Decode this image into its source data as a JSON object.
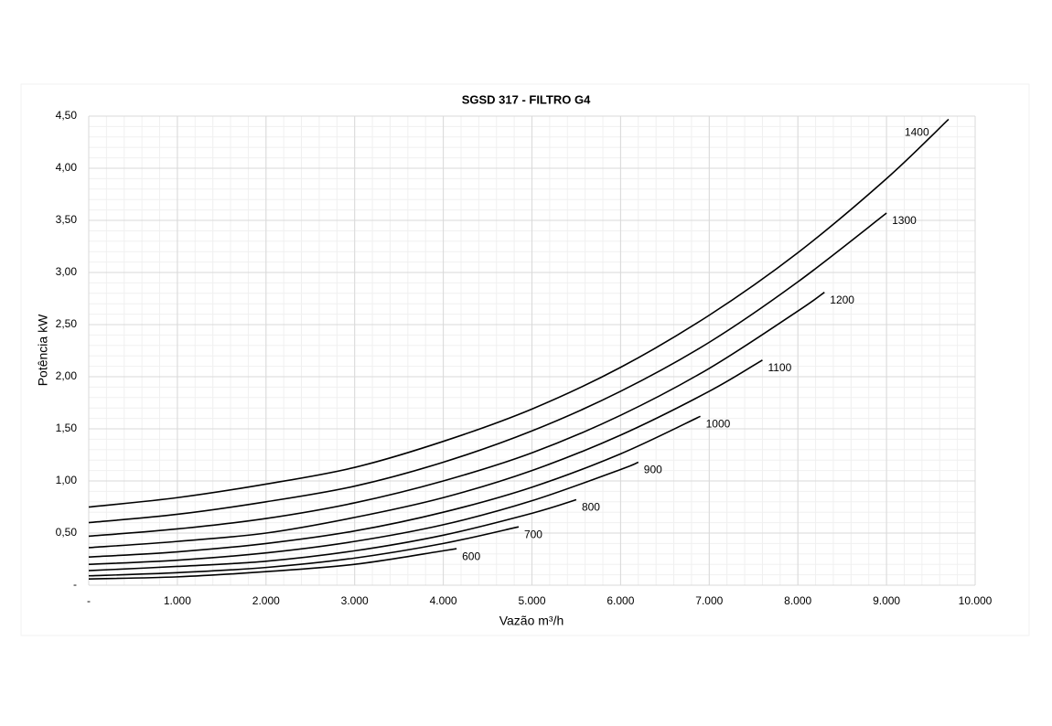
{
  "chart_data": {
    "type": "line",
    "title": "SGSD 317 -  FILTRO G4",
    "x_label": "Vazão m³/h",
    "y_label": "Potência kW",
    "xlim": [
      0,
      10000
    ],
    "ylim": [
      0,
      4.5
    ],
    "xticks": [
      {
        "value": 0,
        "label": "-"
      },
      {
        "value": 1000,
        "label": "1.000"
      },
      {
        "value": 2000,
        "label": "2.000"
      },
      {
        "value": 3000,
        "label": "3.000"
      },
      {
        "value": 4000,
        "label": "4.000"
      },
      {
        "value": 5000,
        "label": "5.000"
      },
      {
        "value": 6000,
        "label": "6.000"
      },
      {
        "value": 7000,
        "label": "7.000"
      },
      {
        "value": 8000,
        "label": "8.000"
      },
      {
        "value": 9000,
        "label": "9.000"
      },
      {
        "value": 10000,
        "label": "10.000"
      }
    ],
    "yticks": [
      {
        "value": 0,
        "label": "-"
      },
      {
        "value": 0.5,
        "label": "0,50"
      },
      {
        "value": 1,
        "label": "1,00"
      },
      {
        "value": 1.5,
        "label": "1,50"
      },
      {
        "value": 2,
        "label": "2,00"
      },
      {
        "value": 2.5,
        "label": "2,50"
      },
      {
        "value": 3,
        "label": "3,00"
      },
      {
        "value": 3.5,
        "label": "3,50"
      },
      {
        "value": 4,
        "label": "4,00"
      },
      {
        "value": 4.5,
        "label": "4,50"
      }
    ],
    "grid": true,
    "series": [
      {
        "name": "1400",
        "color": "#000000",
        "x": [
          0,
          1000,
          2000,
          3000,
          4000,
          5000,
          6000,
          7000,
          8000,
          9000,
          9700
        ],
        "values": [
          0.75,
          0.84,
          0.97,
          1.13,
          1.38,
          1.69,
          2.09,
          2.59,
          3.19,
          3.9,
          4.47
        ]
      },
      {
        "name": "1300",
        "color": "#000000",
        "x": [
          0,
          1000,
          2000,
          3000,
          4000,
          5000,
          6000,
          7000,
          8000,
          9000
        ],
        "values": [
          0.6,
          0.68,
          0.8,
          0.95,
          1.18,
          1.48,
          1.86,
          2.33,
          2.91,
          3.57
        ]
      },
      {
        "name": "1200",
        "color": "#000000",
        "x": [
          0,
          1000,
          2000,
          3000,
          4000,
          5000,
          6000,
          7000,
          8000,
          8300
        ],
        "values": [
          0.47,
          0.54,
          0.64,
          0.79,
          1.0,
          1.27,
          1.63,
          2.08,
          2.63,
          2.81
        ]
      },
      {
        "name": "1100",
        "color": "#000000",
        "x": [
          0,
          1000,
          2000,
          3000,
          4000,
          5000,
          6000,
          7000,
          7600
        ],
        "values": [
          0.36,
          0.42,
          0.5,
          0.65,
          0.84,
          1.1,
          1.44,
          1.86,
          2.16
        ]
      },
      {
        "name": "1000",
        "color": "#000000",
        "x": [
          0,
          1000,
          2000,
          3000,
          4000,
          5000,
          6000,
          6900
        ],
        "values": [
          0.27,
          0.32,
          0.4,
          0.52,
          0.7,
          0.94,
          1.26,
          1.62
        ]
      },
      {
        "name": "900",
        "color": "#000000",
        "x": [
          0,
          1000,
          2000,
          3000,
          4000,
          5000,
          6000,
          6200
        ],
        "values": [
          0.2,
          0.24,
          0.31,
          0.42,
          0.58,
          0.81,
          1.11,
          1.18
        ]
      },
      {
        "name": "800",
        "color": "#000000",
        "x": [
          0,
          1000,
          2000,
          3000,
          4000,
          5000,
          5500
        ],
        "values": [
          0.14,
          0.18,
          0.23,
          0.33,
          0.48,
          0.69,
          0.82
        ]
      },
      {
        "name": "700",
        "color": "#000000",
        "x": [
          0,
          1000,
          2000,
          3000,
          4000,
          4850
        ],
        "values": [
          0.09,
          0.12,
          0.17,
          0.26,
          0.4,
          0.56
        ]
      },
      {
        "name": "600",
        "color": "#000000",
        "x": [
          0,
          1000,
          2000,
          3000,
          4000,
          4150
        ],
        "values": [
          0.06,
          0.08,
          0.13,
          0.2,
          0.33,
          0.35
        ]
      }
    ]
  }
}
